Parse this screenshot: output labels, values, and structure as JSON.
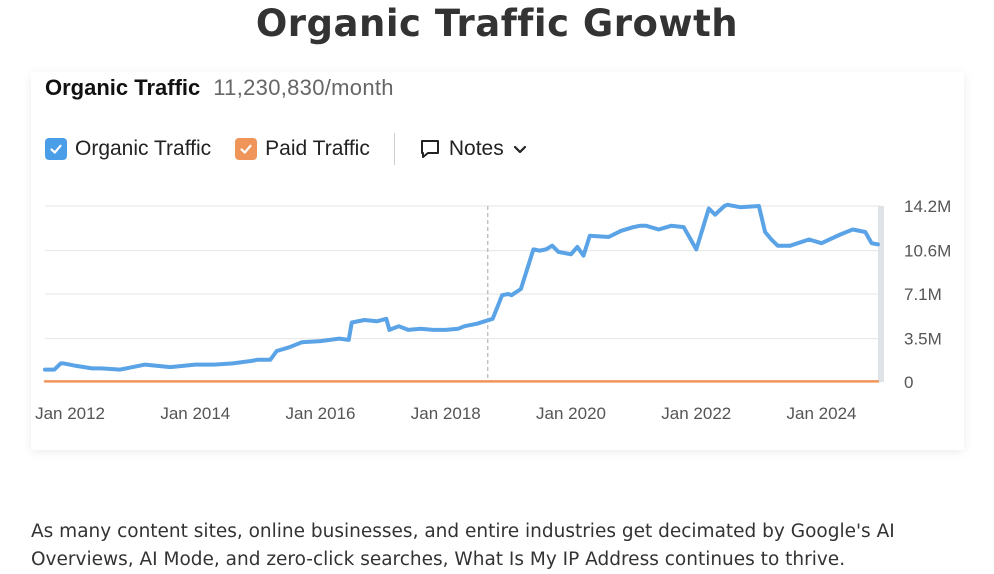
{
  "page": {
    "title": "Organic Traffic Growth",
    "body_text": "As many content sites, online businesses, and entire industries get decimated by Google's AI Overviews, AI Mode, and zero-click searches, What Is My IP Address continues to thrive."
  },
  "card": {
    "metric_label": "Organic Traffic",
    "metric_value": "11,230,830/month",
    "legend": [
      {
        "label": "Organic Traffic",
        "checked": true,
        "color": "#4a9ee8"
      },
      {
        "label": "Paid Traffic",
        "checked": true,
        "color": "#f0955a"
      }
    ],
    "notes_label": "Notes",
    "icons": {
      "notes": "speech-bubble-icon",
      "dropdown": "chevron-down-icon",
      "check": "check-icon"
    }
  },
  "chart_data": {
    "type": "line",
    "x_tick_labels": [
      "Jan 2012",
      "Jan 2014",
      "Jan 2016",
      "Jan 2018",
      "Jan 2020",
      "Jan 2022",
      "Jan 2024"
    ],
    "y_tick_labels": [
      "0",
      "3.5M",
      "7.1M",
      "10.6M",
      "14.2M"
    ],
    "y_tick_values": [
      0,
      3.5,
      7.1,
      10.6,
      14.2
    ],
    "y_unit": "M",
    "ylim": [
      0,
      14.2
    ],
    "xlim": [
      2011.6,
      2024.95
    ],
    "grid": true,
    "y_axis_position": "right",
    "marker_line_x": 2018.67,
    "colors": {
      "organic": "#5aa3e6",
      "paid": "#f0955a",
      "grid": "#e6e6e6"
    },
    "series": [
      {
        "name": "Organic Traffic",
        "x": [
          2011.6,
          2011.75,
          2011.85,
          2011.9,
          2012.1,
          2012.35,
          2012.5,
          2012.8,
          2013.0,
          2013.2,
          2013.4,
          2013.6,
          2013.8,
          2014.0,
          2014.3,
          2014.6,
          2014.9,
          2015.0,
          2015.2,
          2015.3,
          2015.5,
          2015.7,
          2016.0,
          2016.3,
          2016.45,
          2016.5,
          2016.7,
          2016.9,
          2017.05,
          2017.1,
          2017.25,
          2017.4,
          2017.6,
          2017.8,
          2018.0,
          2018.2,
          2018.3,
          2018.5,
          2018.75,
          2018.9,
          2019.0,
          2019.05,
          2019.2,
          2019.4,
          2019.5,
          2019.6,
          2019.7,
          2019.8,
          2020.0,
          2020.1,
          2020.2,
          2020.3,
          2020.6,
          2020.8,
          2021.0,
          2021.1,
          2021.2,
          2021.4,
          2021.6,
          2021.8,
          2022.0,
          2022.2,
          2022.3,
          2022.45,
          2022.5,
          2022.7,
          2023.0,
          2023.1,
          2023.2,
          2023.3,
          2023.5,
          2023.8,
          2024.0,
          2024.3,
          2024.5,
          2024.7,
          2024.8,
          2024.9
        ],
        "y": [
          1.0,
          1.0,
          1.5,
          1.5,
          1.3,
          1.1,
          1.1,
          1.0,
          1.2,
          1.4,
          1.3,
          1.2,
          1.3,
          1.4,
          1.4,
          1.5,
          1.7,
          1.8,
          1.8,
          2.5,
          2.8,
          3.2,
          3.3,
          3.5,
          3.4,
          4.8,
          5.0,
          4.9,
          5.1,
          4.2,
          4.5,
          4.2,
          4.3,
          4.2,
          4.2,
          4.3,
          4.5,
          4.7,
          5.1,
          7.0,
          7.1,
          7.0,
          7.5,
          10.7,
          10.6,
          10.7,
          11.0,
          10.5,
          10.3,
          10.9,
          10.2,
          11.8,
          11.7,
          12.2,
          12.5,
          12.6,
          12.6,
          12.3,
          12.6,
          12.5,
          10.7,
          14.0,
          13.5,
          14.2,
          14.3,
          14.1,
          14.2,
          12.1,
          11.5,
          11.0,
          11.0,
          11.5,
          11.2,
          11.9,
          12.3,
          12.1,
          11.2,
          11.1
        ]
      },
      {
        "name": "Paid Traffic",
        "x": [
          2011.6,
          2024.9
        ],
        "y": [
          0.05,
          0.05
        ]
      }
    ]
  }
}
